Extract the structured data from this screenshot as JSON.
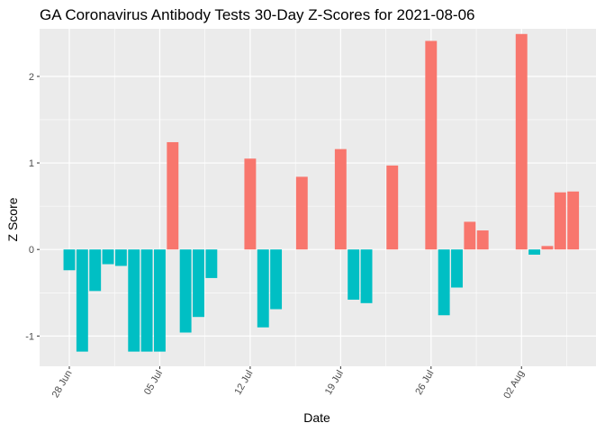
{
  "chart_data": {
    "type": "bar",
    "title": "GA Coronavirus Antibody Tests 30-Day Z-Scores for 2021-08-06",
    "xlabel": "Date",
    "ylabel": "Z Score",
    "ylim": [
      -1.35,
      2.55
    ],
    "y_ticks": [
      -1,
      0,
      1,
      2
    ],
    "x_ticks": [
      {
        "date": "2021-06-28",
        "label": "28 Jun"
      },
      {
        "date": "2021-07-05",
        "label": "05 Jul"
      },
      {
        "date": "2021-07-12",
        "label": "12 Jul"
      },
      {
        "date": "2021-07-19",
        "label": "19 Jul"
      },
      {
        "date": "2021-07-26",
        "label": "26 Jul"
      },
      {
        "date": "2021-08-02",
        "label": "02 Aug"
      }
    ],
    "grid": true,
    "legend": "none",
    "colors": {
      "positive": "#F8766D",
      "negative": "#00BFC4",
      "panel": "#EBEBEB",
      "grid": "#FFFFFF"
    },
    "bars": [
      {
        "date": "2021-06-28",
        "value": -0.24
      },
      {
        "date": "2021-06-29",
        "value": -1.18
      },
      {
        "date": "2021-06-30",
        "value": -0.48
      },
      {
        "date": "2021-07-01",
        "value": -0.17
      },
      {
        "date": "2021-07-02",
        "value": -0.19
      },
      {
        "date": "2021-07-03",
        "value": -1.18
      },
      {
        "date": "2021-07-04",
        "value": -1.18
      },
      {
        "date": "2021-07-05",
        "value": -1.18
      },
      {
        "date": "2021-07-06",
        "value": 1.24
      },
      {
        "date": "2021-07-07",
        "value": -0.96
      },
      {
        "date": "2021-07-08",
        "value": -0.78
      },
      {
        "date": "2021-07-09",
        "value": -0.33
      },
      {
        "date": "2021-07-12",
        "value": 1.05
      },
      {
        "date": "2021-07-13",
        "value": -0.9
      },
      {
        "date": "2021-07-14",
        "value": -0.69
      },
      {
        "date": "2021-07-16",
        "value": 0.84
      },
      {
        "date": "2021-07-19",
        "value": 1.16
      },
      {
        "date": "2021-07-20",
        "value": -0.58
      },
      {
        "date": "2021-07-21",
        "value": -0.62
      },
      {
        "date": "2021-07-23",
        "value": 0.97
      },
      {
        "date": "2021-07-26",
        "value": 2.41
      },
      {
        "date": "2021-07-27",
        "value": -0.76
      },
      {
        "date": "2021-07-28",
        "value": -0.44
      },
      {
        "date": "2021-07-29",
        "value": 0.32
      },
      {
        "date": "2021-07-30",
        "value": 0.22
      },
      {
        "date": "2021-08-02",
        "value": 2.49
      },
      {
        "date": "2021-08-03",
        "value": -0.06
      },
      {
        "date": "2021-08-04",
        "value": 0.04
      },
      {
        "date": "2021-08-05",
        "value": 0.66
      },
      {
        "date": "2021-08-06",
        "value": 0.67
      }
    ]
  }
}
